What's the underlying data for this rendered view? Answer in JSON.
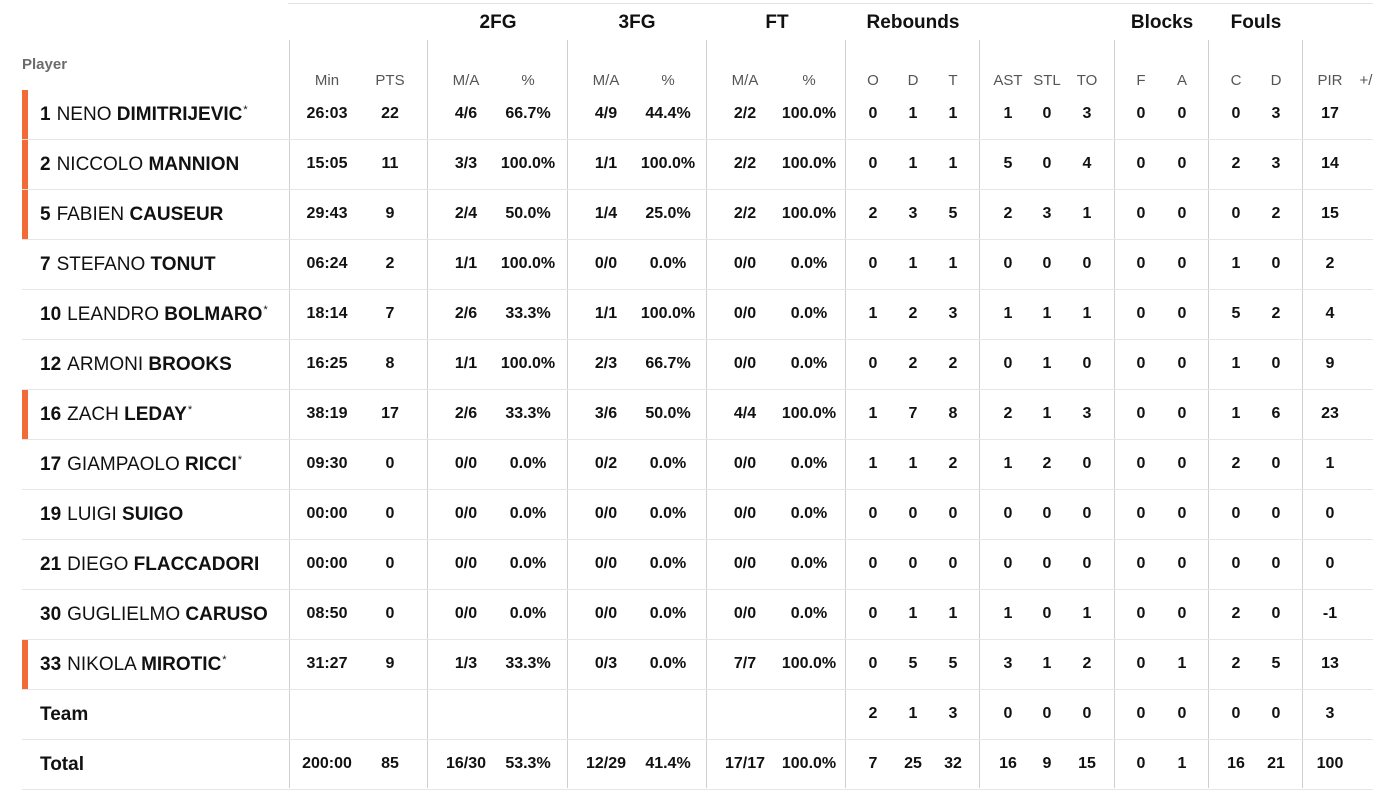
{
  "groups": {
    "fg2": "2FG",
    "fg3": "3FG",
    "ft": "FT",
    "rebounds": "Rebounds",
    "blocks": "Blocks",
    "fouls": "Fouls"
  },
  "player_label": "Player",
  "columns": {
    "min": "Min",
    "pts": "PTS",
    "fg2_ma": "M/A",
    "fg2_pct": "%",
    "fg3_ma": "M/A",
    "fg3_pct": "%",
    "ft_ma": "M/A",
    "ft_pct": "%",
    "reb_o": "O",
    "reb_d": "D",
    "reb_t": "T",
    "ast": "AST",
    "stl": "STL",
    "to": "TO",
    "blk_f": "F",
    "blk_a": "A",
    "foul_c": "C",
    "foul_d": "D",
    "pir": "PIR",
    "pm": "+/"
  },
  "accent_color": "#f26b36",
  "players": [
    {
      "num": "1",
      "first": "NENO",
      "last": "DIMITRIJEVIC",
      "star": "*",
      "starter": true,
      "min": "26:03",
      "pts": "22",
      "fg2_ma": "4/6",
      "fg2_pct": "66.7%",
      "fg3_ma": "4/9",
      "fg3_pct": "44.4%",
      "ft_ma": "2/2",
      "ft_pct": "100.0%",
      "reb_o": "0",
      "reb_d": "1",
      "reb_t": "1",
      "ast": "1",
      "stl": "0",
      "to": "3",
      "blk_f": "0",
      "blk_a": "0",
      "foul_c": "0",
      "foul_d": "3",
      "pir": "17"
    },
    {
      "num": "2",
      "first": "NICCOLO",
      "last": "MANNION",
      "star": "",
      "starter": true,
      "min": "15:05",
      "pts": "11",
      "fg2_ma": "3/3",
      "fg2_pct": "100.0%",
      "fg3_ma": "1/1",
      "fg3_pct": "100.0%",
      "ft_ma": "2/2",
      "ft_pct": "100.0%",
      "reb_o": "0",
      "reb_d": "1",
      "reb_t": "1",
      "ast": "5",
      "stl": "0",
      "to": "4",
      "blk_f": "0",
      "blk_a": "0",
      "foul_c": "2",
      "foul_d": "3",
      "pir": "14"
    },
    {
      "num": "5",
      "first": "FABIEN",
      "last": "CAUSEUR",
      "star": "",
      "starter": true,
      "min": "29:43",
      "pts": "9",
      "fg2_ma": "2/4",
      "fg2_pct": "50.0%",
      "fg3_ma": "1/4",
      "fg3_pct": "25.0%",
      "ft_ma": "2/2",
      "ft_pct": "100.0%",
      "reb_o": "2",
      "reb_d": "3",
      "reb_t": "5",
      "ast": "2",
      "stl": "3",
      "to": "1",
      "blk_f": "0",
      "blk_a": "0",
      "foul_c": "0",
      "foul_d": "2",
      "pir": "15"
    },
    {
      "num": "7",
      "first": "STEFANO",
      "last": "TONUT",
      "star": "",
      "starter": false,
      "min": "06:24",
      "pts": "2",
      "fg2_ma": "1/1",
      "fg2_pct": "100.0%",
      "fg3_ma": "0/0",
      "fg3_pct": "0.0%",
      "ft_ma": "0/0",
      "ft_pct": "0.0%",
      "reb_o": "0",
      "reb_d": "1",
      "reb_t": "1",
      "ast": "0",
      "stl": "0",
      "to": "0",
      "blk_f": "0",
      "blk_a": "0",
      "foul_c": "1",
      "foul_d": "0",
      "pir": "2"
    },
    {
      "num": "10",
      "first": "LEANDRO",
      "last": "BOLMARO",
      "star": "*",
      "starter": false,
      "min": "18:14",
      "pts": "7",
      "fg2_ma": "2/6",
      "fg2_pct": "33.3%",
      "fg3_ma": "1/1",
      "fg3_pct": "100.0%",
      "ft_ma": "0/0",
      "ft_pct": "0.0%",
      "reb_o": "1",
      "reb_d": "2",
      "reb_t": "3",
      "ast": "1",
      "stl": "1",
      "to": "1",
      "blk_f": "0",
      "blk_a": "0",
      "foul_c": "5",
      "foul_d": "2",
      "pir": "4"
    },
    {
      "num": "12",
      "first": "ARMONI",
      "last": "BROOKS",
      "star": "",
      "starter": false,
      "min": "16:25",
      "pts": "8",
      "fg2_ma": "1/1",
      "fg2_pct": "100.0%",
      "fg3_ma": "2/3",
      "fg3_pct": "66.7%",
      "ft_ma": "0/0",
      "ft_pct": "0.0%",
      "reb_o": "0",
      "reb_d": "2",
      "reb_t": "2",
      "ast": "0",
      "stl": "1",
      "to": "0",
      "blk_f": "0",
      "blk_a": "0",
      "foul_c": "1",
      "foul_d": "0",
      "pir": "9"
    },
    {
      "num": "16",
      "first": "ZACH",
      "last": "LEDAY",
      "star": "*",
      "starter": true,
      "min": "38:19",
      "pts": "17",
      "fg2_ma": "2/6",
      "fg2_pct": "33.3%",
      "fg3_ma": "3/6",
      "fg3_pct": "50.0%",
      "ft_ma": "4/4",
      "ft_pct": "100.0%",
      "reb_o": "1",
      "reb_d": "7",
      "reb_t": "8",
      "ast": "2",
      "stl": "1",
      "to": "3",
      "blk_f": "0",
      "blk_a": "0",
      "foul_c": "1",
      "foul_d": "6",
      "pir": "23"
    },
    {
      "num": "17",
      "first": "GIAMPAOLO",
      "last": "RICCI",
      "star": "*",
      "starter": false,
      "min": "09:30",
      "pts": "0",
      "fg2_ma": "0/0",
      "fg2_pct": "0.0%",
      "fg3_ma": "0/2",
      "fg3_pct": "0.0%",
      "ft_ma": "0/0",
      "ft_pct": "0.0%",
      "reb_o": "1",
      "reb_d": "1",
      "reb_t": "2",
      "ast": "1",
      "stl": "2",
      "to": "0",
      "blk_f": "0",
      "blk_a": "0",
      "foul_c": "2",
      "foul_d": "0",
      "pir": "1"
    },
    {
      "num": "19",
      "first": "LUIGI",
      "last": "SUIGO",
      "star": "",
      "starter": false,
      "min": "00:00",
      "pts": "0",
      "fg2_ma": "0/0",
      "fg2_pct": "0.0%",
      "fg3_ma": "0/0",
      "fg3_pct": "0.0%",
      "ft_ma": "0/0",
      "ft_pct": "0.0%",
      "reb_o": "0",
      "reb_d": "0",
      "reb_t": "0",
      "ast": "0",
      "stl": "0",
      "to": "0",
      "blk_f": "0",
      "blk_a": "0",
      "foul_c": "0",
      "foul_d": "0",
      "pir": "0"
    },
    {
      "num": "21",
      "first": "DIEGO",
      "last": "FLACCADORI",
      "star": "",
      "starter": false,
      "min": "00:00",
      "pts": "0",
      "fg2_ma": "0/0",
      "fg2_pct": "0.0%",
      "fg3_ma": "0/0",
      "fg3_pct": "0.0%",
      "ft_ma": "0/0",
      "ft_pct": "0.0%",
      "reb_o": "0",
      "reb_d": "0",
      "reb_t": "0",
      "ast": "0",
      "stl": "0",
      "to": "0",
      "blk_f": "0",
      "blk_a": "0",
      "foul_c": "0",
      "foul_d": "0",
      "pir": "0"
    },
    {
      "num": "30",
      "first": "GUGLIELMO",
      "last": "CARUSO",
      "star": "",
      "starter": false,
      "min": "08:50",
      "pts": "0",
      "fg2_ma": "0/0",
      "fg2_pct": "0.0%",
      "fg3_ma": "0/0",
      "fg3_pct": "0.0%",
      "ft_ma": "0/0",
      "ft_pct": "0.0%",
      "reb_o": "0",
      "reb_d": "1",
      "reb_t": "1",
      "ast": "1",
      "stl": "0",
      "to": "1",
      "blk_f": "0",
      "blk_a": "0",
      "foul_c": "2",
      "foul_d": "0",
      "pir": "-1"
    },
    {
      "num": "33",
      "first": "NIKOLA",
      "last": "MIROTIC",
      "star": "*",
      "starter": true,
      "min": "31:27",
      "pts": "9",
      "fg2_ma": "1/3",
      "fg2_pct": "33.3%",
      "fg3_ma": "0/3",
      "fg3_pct": "0.0%",
      "ft_ma": "7/7",
      "ft_pct": "100.0%",
      "reb_o": "0",
      "reb_d": "5",
      "reb_t": "5",
      "ast": "3",
      "stl": "1",
      "to": "2",
      "blk_f": "0",
      "blk_a": "1",
      "foul_c": "2",
      "foul_d": "5",
      "pir": "13"
    }
  ],
  "team": {
    "label": "Team",
    "reb_o": "2",
    "reb_d": "1",
    "reb_t": "3",
    "ast": "0",
    "stl": "0",
    "to": "0",
    "blk_f": "0",
    "blk_a": "0",
    "foul_c": "0",
    "foul_d": "0",
    "pir": "3"
  },
  "total": {
    "label": "Total",
    "min": "200:00",
    "pts": "85",
    "fg2_ma": "16/30",
    "fg2_pct": "53.3%",
    "fg3_ma": "12/29",
    "fg3_pct": "41.4%",
    "ft_ma": "17/17",
    "ft_pct": "100.0%",
    "reb_o": "7",
    "reb_d": "25",
    "reb_t": "32",
    "ast": "16",
    "stl": "9",
    "to": "15",
    "blk_f": "0",
    "blk_a": "1",
    "foul_c": "16",
    "foul_d": "21",
    "pir": "100"
  }
}
